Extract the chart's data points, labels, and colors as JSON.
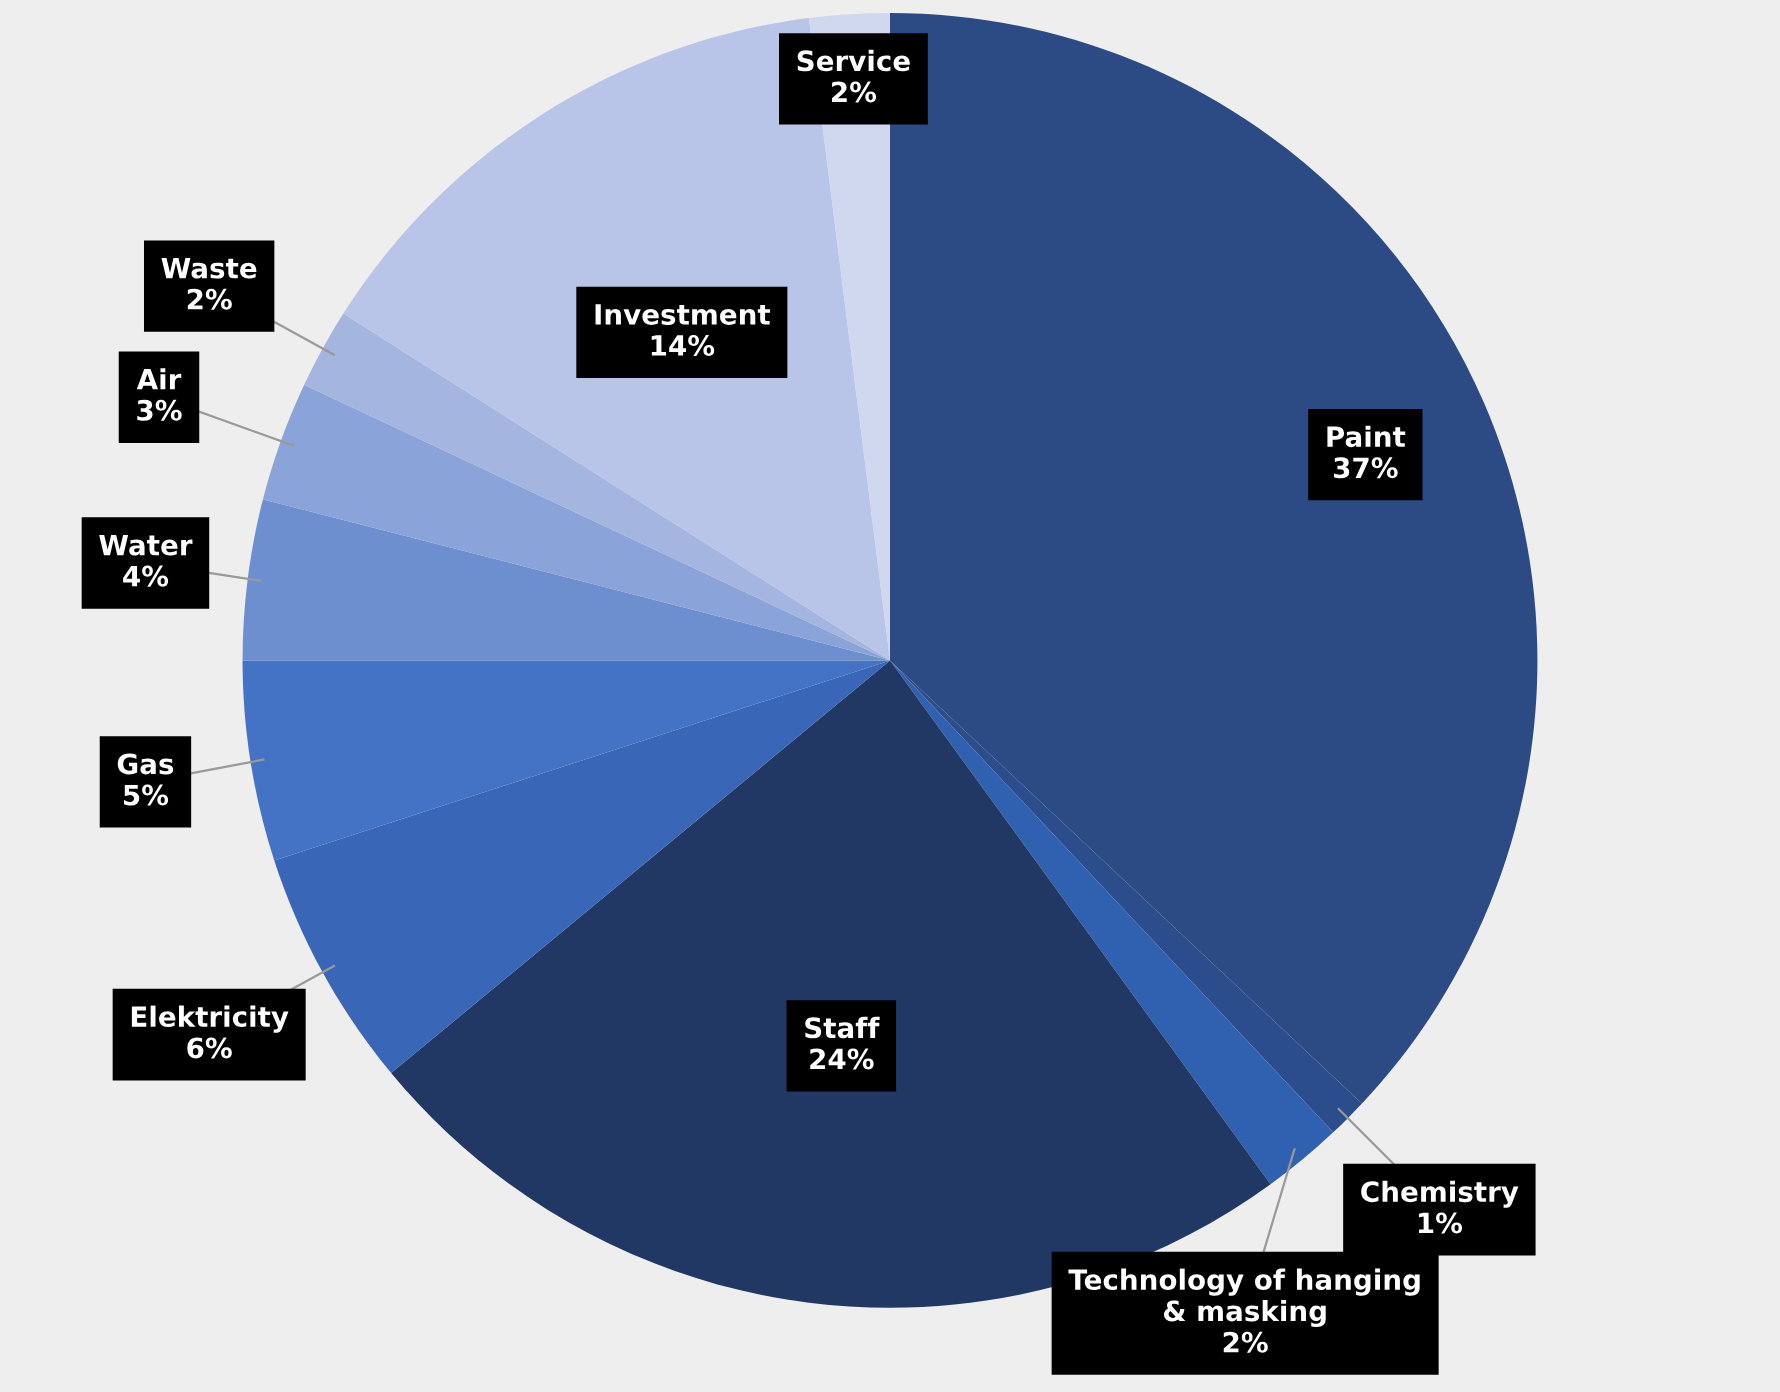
{
  "chart_data": {
    "type": "pie",
    "categories": [
      "Paint",
      "Chemistry",
      "Technology of hanging\n& masking",
      "Staff",
      "Elektricity",
      "Gas",
      "Water",
      "Air",
      "Waste",
      "Investment",
      "Service"
    ],
    "values": [
      37,
      1,
      2,
      24,
      6,
      5,
      4,
      3,
      2,
      14,
      2
    ],
    "colors": [
      "#2c4b85",
      "#2b4d8c",
      "#3060b0",
      "#213864",
      "#3a66b8",
      "#4472c4",
      "#6d8fd0",
      "#8aa3d9",
      "#a4b5e0",
      "#b9c5e8",
      "#cfd8ef"
    ],
    "value_labels": [
      "37%",
      "1%",
      "2%",
      "24%",
      "6%",
      "5%",
      "4%",
      "3%",
      "2%",
      "14%",
      "2%"
    ]
  }
}
